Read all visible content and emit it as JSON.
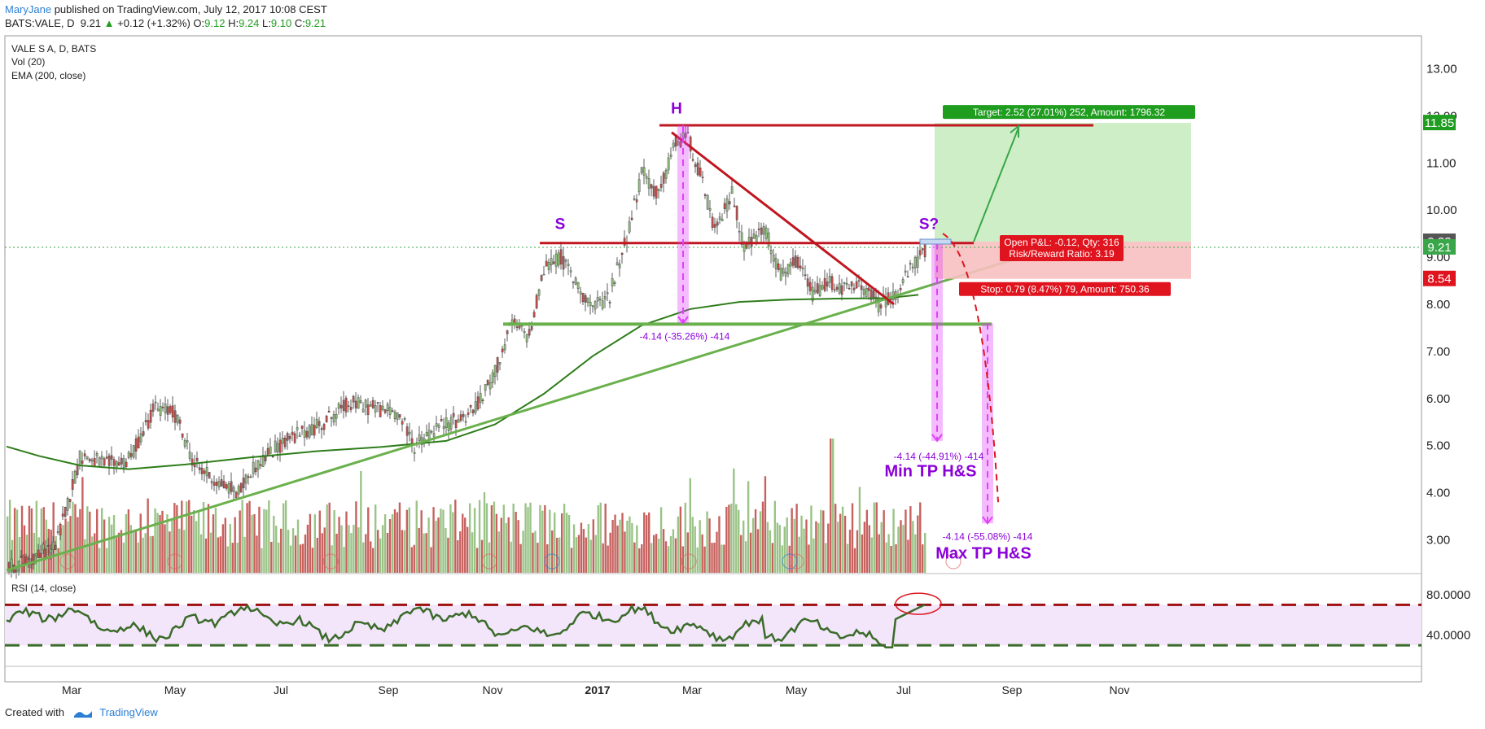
{
  "header": {
    "author": "MaryJane",
    "published": " published on TradingView.com, July 12, 2017 10:08 CEST",
    "symbol": "BATS:VALE, D",
    "last": "9.21",
    "change": "+0.12 (+1.32%)",
    "o_label": "O:",
    "o": "9.12",
    "h_label": "H:",
    "h": "9.24",
    "l_label": "L:",
    "l": "9.10",
    "c_label": "C:",
    "c": "9.21"
  },
  "legend": {
    "title": "VALE S A, D, BATS",
    "vol": "Vol (20)",
    "ema": "EMA (200, close)",
    "rsi": "RSI (14, close)"
  },
  "colors": {
    "candle_up": "#8fbc7a",
    "candle_down": "#c0504d",
    "ema": "#2e7d1a",
    "trendline": "#6ab04c",
    "red_line": "#c0161f",
    "magenta": "#e040fb",
    "purple": "#8b00d8",
    "target_fill": "#c8ecc0",
    "stop_fill": "#f7c0c0",
    "rsi_line": "#3b6b2a",
    "rsi_band": "#f3e6fb"
  },
  "chart_data": {
    "type": "candlestick",
    "y_axis": {
      "range": [
        2.3,
        13.7
      ],
      "ticks": [
        "13.00",
        "12.00",
        "11.00",
        "10.00",
        "9.00",
        "8.00",
        "7.00",
        "6.00",
        "5.00",
        "4.00",
        "3.00"
      ],
      "tick_values": [
        13,
        12,
        11,
        10,
        9,
        8,
        7,
        6,
        5,
        4,
        3
      ]
    },
    "x_axis": {
      "labels": [
        "Mar",
        "May",
        "Jul",
        "Sep",
        "Nov",
        "2017",
        "Mar",
        "May",
        "Jul",
        "Sep",
        "Nov"
      ]
    },
    "price_badges": [
      {
        "value": 11.85,
        "label": "11.85",
        "color": "#1f9d1f"
      },
      {
        "value": 9.33,
        "label": "9.33",
        "color": "#555555"
      },
      {
        "value": 9.21,
        "label": "9.21",
        "color": "#3aa64a"
      },
      {
        "value": 8.54,
        "label": "8.54",
        "color": "#e0141e"
      }
    ],
    "close_path": [
      [
        0,
        2.4
      ],
      [
        30,
        2.6
      ],
      [
        60,
        2.9
      ],
      [
        90,
        4.8
      ],
      [
        120,
        4.6
      ],
      [
        150,
        4.7
      ],
      [
        180,
        5.8
      ],
      [
        205,
        5.7
      ],
      [
        230,
        4.6
      ],
      [
        260,
        4.2
      ],
      [
        285,
        4.0
      ],
      [
        300,
        4.5
      ],
      [
        340,
        5.1
      ],
      [
        380,
        5.4
      ],
      [
        420,
        5.9
      ],
      [
        450,
        5.8
      ],
      [
        480,
        5.7
      ],
      [
        500,
        5.0
      ],
      [
        530,
        5.4
      ],
      [
        560,
        5.6
      ],
      [
        580,
        5.9
      ],
      [
        600,
        6.6
      ],
      [
        620,
        7.6
      ],
      [
        640,
        7.3
      ],
      [
        660,
        8.8
      ],
      [
        680,
        9.0
      ],
      [
        700,
        8.4
      ],
      [
        720,
        7.9
      ],
      [
        740,
        8.2
      ],
      [
        760,
        9.4
      ],
      [
        780,
        10.8
      ],
      [
        800,
        10.3
      ],
      [
        820,
        11.4
      ],
      [
        835,
        11.6
      ],
      [
        850,
        10.8
      ],
      [
        870,
        9.5
      ],
      [
        890,
        10.4
      ],
      [
        905,
        9.2
      ],
      [
        930,
        9.6
      ],
      [
        950,
        8.6
      ],
      [
        970,
        8.9
      ],
      [
        990,
        8.2
      ],
      [
        1010,
        8.5
      ],
      [
        1030,
        8.3
      ],
      [
        1050,
        8.4
      ],
      [
        1070,
        8.0
      ],
      [
        1090,
        8.2
      ],
      [
        1105,
        8.6
      ],
      [
        1120,
        9.0
      ],
      [
        1130,
        9.21
      ]
    ],
    "ema200": [
      [
        0,
        4.98
      ],
      [
        40,
        4.78
      ],
      [
        90,
        4.58
      ],
      [
        150,
        4.5
      ],
      [
        220,
        4.6
      ],
      [
        300,
        4.75
      ],
      [
        380,
        4.88
      ],
      [
        460,
        4.97
      ],
      [
        540,
        5.1
      ],
      [
        600,
        5.45
      ],
      [
        660,
        6.1
      ],
      [
        720,
        6.9
      ],
      [
        780,
        7.55
      ],
      [
        840,
        7.9
      ],
      [
        900,
        8.05
      ],
      [
        960,
        8.1
      ],
      [
        1020,
        8.12
      ],
      [
        1080,
        8.13
      ],
      [
        1120,
        8.2
      ]
    ],
    "volume_bars": 380,
    "hs_labels": [
      {
        "text": "S",
        "x": 680,
        "y": 9.6
      },
      {
        "text": "H",
        "x": 823,
        "y": 12.05
      },
      {
        "text": "S?",
        "x": 1133,
        "y": 9.6
      }
    ],
    "neckline_red": {
      "y": 9.3,
      "x0": 655,
      "x1": 1188
    },
    "head_line": {
      "y": 11.8,
      "x0": 802,
      "x1": 1335
    },
    "neckline_green": {
      "y": 7.58,
      "x0": 610,
      "x1": 1210
    },
    "descending_line": [
      [
        817,
        11.65
      ],
      [
        1090,
        8.0
      ]
    ],
    "ascending_line": [
      [
        0,
        2.35
      ],
      [
        1265,
        9.1
      ]
    ],
    "measure_bars": [
      {
        "x": 831,
        "y0": 11.8,
        "y1": 7.6
      },
      {
        "x": 1143,
        "y0": 9.3,
        "y1": 5.1
      },
      {
        "x": 1205,
        "y0": 7.6,
        "y1": 3.35
      }
    ],
    "annotations": [
      {
        "text": "-4.14 (-35.26%) -414",
        "x": 833,
        "y": 7.25
      },
      {
        "text": "-4.14 (-44.91%) -414",
        "x": 1145,
        "y": 4.7
      },
      {
        "text": "Min TP H&S",
        "x": 1135,
        "y": 4.35,
        "big": true
      },
      {
        "text": "-4.14 (-55.08%) -414",
        "x": 1205,
        "y": 3.0
      },
      {
        "text": "Max TP H&S",
        "x": 1200,
        "y": 2.6,
        "big": true
      }
    ],
    "position": {
      "target_label": "Target: 2.52 (27.01%) 252, Amount: 1796.32",
      "pnl_label": "Open P&L: -0.12, Qty: 316",
      "rr_label": "Risk/Reward Ratio: 3.19",
      "stop_label": "Stop: 0.79 (8.47%) 79, Amount: 750.36",
      "entry": 9.33,
      "target": 11.85,
      "stop": 8.54,
      "x0": 1140,
      "x1": 1455
    },
    "rsi": {
      "ticks": [
        "80.0000",
        "40.0000"
      ],
      "overbought": 70,
      "oversold": 30,
      "range": [
        10,
        100
      ]
    }
  }
}
